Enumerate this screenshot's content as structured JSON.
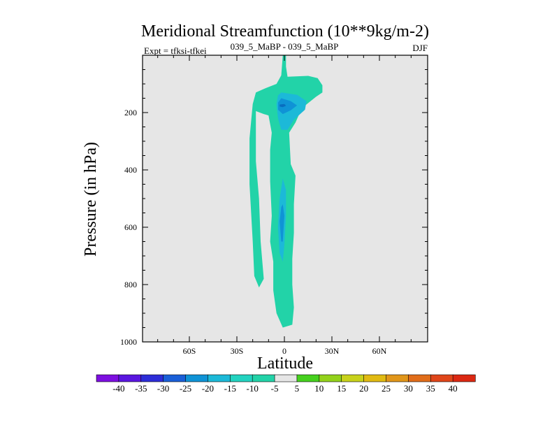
{
  "chart_data": {
    "type": "contour",
    "title": "Meridional Streamfunction (10**9kg/m-2)",
    "subtitle_left": "Expt = tfksi-tfkei",
    "subtitle_center": "039_5_MaBP - 039_5_MaBP",
    "subtitle_right": "DJF",
    "xlabel": "Latitude",
    "ylabel": "Pressure (in hPa)",
    "xlim": [
      -90,
      90
    ],
    "ylim": [
      1000,
      0
    ],
    "x_ticks": [
      {
        "value": -60,
        "label": "60S"
      },
      {
        "value": -30,
        "label": "30S"
      },
      {
        "value": 0,
        "label": "0"
      },
      {
        "value": 30,
        "label": "30N"
      },
      {
        "value": 60,
        "label": "60N"
      }
    ],
    "y_ticks": [
      {
        "value": 200,
        "label": "200"
      },
      {
        "value": 400,
        "label": "400"
      },
      {
        "value": 600,
        "label": "600"
      },
      {
        "value": 800,
        "label": "800"
      },
      {
        "value": 1000,
        "label": "1000"
      }
    ],
    "plot_background": "#e6e6e6",
    "contour_regions": [
      {
        "level": -10,
        "color": "#22d3a8",
        "points": [
          [
            -1,
            0
          ],
          [
            1,
            0
          ],
          [
            1,
            40
          ],
          [
            2,
            75
          ],
          [
            15,
            72
          ],
          [
            21,
            80
          ],
          [
            24,
            105
          ],
          [
            24,
            130
          ],
          [
            20,
            145
          ],
          [
            11,
            185
          ],
          [
            7,
            235
          ],
          [
            3,
            270
          ],
          [
            4,
            380
          ],
          [
            7,
            420
          ],
          [
            6,
            520
          ],
          [
            6,
            620
          ],
          [
            5,
            710
          ],
          [
            5,
            800
          ],
          [
            6,
            880
          ],
          [
            5,
            940
          ],
          [
            -1,
            950
          ],
          [
            -5,
            900
          ],
          [
            -7,
            820
          ],
          [
            -7,
            720
          ],
          [
            -9,
            650
          ],
          [
            -8,
            560
          ],
          [
            -9,
            440
          ],
          [
            -9,
            330
          ],
          [
            -8,
            270
          ],
          [
            -10,
            210
          ],
          [
            -13,
            205
          ],
          [
            -18,
            195
          ],
          [
            -18,
            370
          ],
          [
            -16,
            500
          ],
          [
            -15,
            650
          ],
          [
            -13,
            780
          ],
          [
            -16,
            810
          ],
          [
            -19,
            770
          ],
          [
            -20,
            650
          ],
          [
            -22,
            450
          ],
          [
            -22,
            290
          ],
          [
            -20,
            170
          ],
          [
            -18,
            130
          ],
          [
            -12,
            115
          ],
          [
            -5,
            100
          ],
          [
            -2,
            70
          ]
        ]
      },
      {
        "level": -15,
        "color": "#1cb9d8",
        "points": [
          [
            -2,
            130
          ],
          [
            8,
            138
          ],
          [
            14,
            160
          ],
          [
            13,
            190
          ],
          [
            6,
            225
          ],
          [
            2,
            260
          ],
          [
            -2,
            260
          ],
          [
            -4,
            220
          ],
          [
            -5,
            170
          ],
          [
            -4,
            140
          ]
        ]
      },
      {
        "level": -15,
        "color": "#1cb9d8",
        "points": [
          [
            -1,
            430
          ],
          [
            1,
            470
          ],
          [
            1,
            560
          ],
          [
            0,
            660
          ],
          [
            -1,
            720
          ],
          [
            -3,
            690
          ],
          [
            -4,
            600
          ],
          [
            -3,
            500
          ]
        ]
      },
      {
        "level": -20,
        "color": "#0f93d6",
        "points": [
          [
            -2,
            150
          ],
          [
            4,
            160
          ],
          [
            8,
            175
          ],
          [
            4,
            192
          ],
          [
            -1,
            205
          ],
          [
            -4,
            190
          ],
          [
            -4,
            165
          ]
        ]
      },
      {
        "level": -20,
        "color": "#0f93d6",
        "points": [
          [
            -1,
            520
          ],
          [
            0,
            560
          ],
          [
            -1,
            650
          ],
          [
            -2,
            650
          ],
          [
            -3,
            580
          ],
          [
            -2,
            530
          ]
        ]
      },
      {
        "level": -25,
        "color": "#086ec0",
        "points": [
          [
            -3,
            172
          ],
          [
            0,
            170
          ],
          [
            1,
            176
          ],
          [
            -1,
            181
          ],
          [
            -3,
            179
          ]
        ]
      }
    ],
    "colorbar": {
      "labels": [
        "-40",
        "-35",
        "-30",
        "-25",
        "-20",
        "-15",
        "-10",
        "-5",
        "5",
        "10",
        "15",
        "20",
        "25",
        "30",
        "35",
        "40"
      ],
      "colors": [
        "#7d0fe0",
        "#5a16e0",
        "#2d2dd8",
        "#1a5fd8",
        "#0f93d6",
        "#1cb9d8",
        "#22d3c0",
        "#22d3a8",
        "#e6e6e6",
        "#46d11e",
        "#93d21b",
        "#c8d21b",
        "#e1ba12",
        "#e1961a",
        "#e16d1a",
        "#e0461a",
        "#dc2812"
      ]
    }
  }
}
